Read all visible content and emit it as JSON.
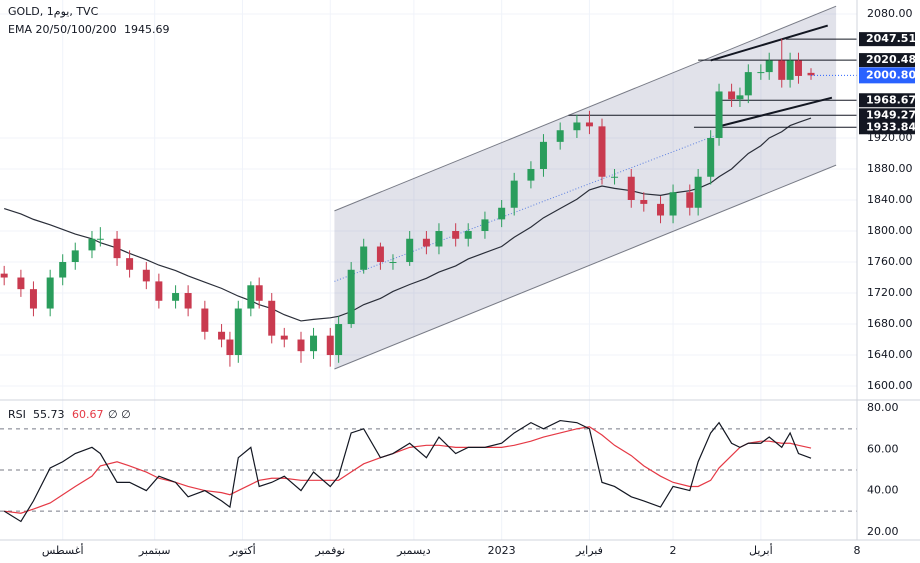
{
  "chart_data": {
    "type": "candlestick",
    "title": "GOLD, 1يوم, TVC",
    "ema_label": "EMA 20/50/100/200",
    "ema_value": 1945.69,
    "up_color": "#2a9d5c",
    "down_color": "#c93a4f",
    "xlim": [
      0,
      205
    ],
    "xticks": [
      {
        "value": 15,
        "label": "أغسطس"
      },
      {
        "value": 37,
        "label": "سبتمبر"
      },
      {
        "value": 58,
        "label": "أكتوبر"
      },
      {
        "value": 79,
        "label": "نوفمبر"
      },
      {
        "value": 99,
        "label": "ديسمبر"
      },
      {
        "value": 120,
        "label": "2023"
      },
      {
        "value": 141,
        "label": "فبراير"
      },
      {
        "value": 161,
        "label": "2"
      },
      {
        "value": 182,
        "label": "أبريل"
      },
      {
        "value": 205,
        "label": "8"
      }
    ],
    "ylim": [
      1582,
      2098
    ],
    "yticks": [
      {
        "value": 2080,
        "label": "2080.00"
      },
      {
        "value": 1920,
        "label": "1920.00"
      },
      {
        "value": 1880,
        "label": "1880.00"
      },
      {
        "value": 1840,
        "label": "1840.00"
      },
      {
        "value": 1800,
        "label": "1800.00"
      },
      {
        "value": 1760,
        "label": "1760.00"
      },
      {
        "value": 1720,
        "label": "1720.00"
      },
      {
        "value": 1680,
        "label": "1680.00"
      },
      {
        "value": 1640,
        "label": "1640.00"
      },
      {
        "value": 1600,
        "label": "1600.00"
      }
    ],
    "x": [
      1,
      5,
      8,
      12,
      15,
      18,
      22,
      24,
      28,
      31,
      35,
      38,
      42,
      45,
      49,
      53,
      55,
      57,
      60,
      62,
      65,
      68,
      72,
      75,
      79,
      81,
      84,
      87,
      91,
      94,
      98,
      102,
      105,
      109,
      112,
      116,
      120,
      123,
      127,
      130,
      134,
      138,
      141,
      144,
      147,
      151,
      154,
      158,
      161,
      165,
      167,
      170,
      172,
      175,
      177,
      179,
      182,
      184,
      187,
      189,
      191,
      194
    ],
    "open": [
      1745,
      1740,
      1725,
      1700,
      1740,
      1760,
      1775,
      1790,
      1790,
      1765,
      1750,
      1735,
      1710,
      1720,
      1700,
      1670,
      1660,
      1640,
      1700,
      1730,
      1710,
      1665,
      1660,
      1645,
      1665,
      1640,
      1680,
      1750,
      1780,
      1760,
      1760,
      1790,
      1780,
      1800,
      1790,
      1800,
      1815,
      1830,
      1865,
      1880,
      1915,
      1930,
      1940,
      1935,
      1870,
      1870,
      1840,
      1835,
      1820,
      1850,
      1830,
      1870,
      1920,
      1980,
      1970,
      1975,
      2005,
      2005,
      2020,
      1995,
      2020,
      2004
    ],
    "high": [
      1755,
      1750,
      1735,
      1750,
      1770,
      1785,
      1800,
      1805,
      1800,
      1775,
      1760,
      1745,
      1730,
      1730,
      1710,
      1680,
      1670,
      1710,
      1735,
      1740,
      1720,
      1675,
      1670,
      1675,
      1675,
      1690,
      1760,
      1790,
      1785,
      1770,
      1800,
      1800,
      1810,
      1810,
      1810,
      1825,
      1840,
      1875,
      1890,
      1925,
      1940,
      1950,
      1955,
      1945,
      1880,
      1880,
      1850,
      1845,
      1860,
      1860,
      1880,
      1930,
      1990,
      1990,
      1985,
      2015,
      2015,
      2030,
      2048,
      2030,
      2030,
      2010
    ],
    "low": [
      1730,
      1715,
      1690,
      1690,
      1730,
      1750,
      1765,
      1780,
      1755,
      1740,
      1725,
      1700,
      1700,
      1690,
      1660,
      1650,
      1625,
      1630,
      1690,
      1700,
      1655,
      1650,
      1630,
      1635,
      1625,
      1630,
      1675,
      1745,
      1750,
      1750,
      1755,
      1770,
      1770,
      1780,
      1780,
      1790,
      1805,
      1820,
      1855,
      1870,
      1905,
      1920,
      1925,
      1860,
      1860,
      1830,
      1825,
      1810,
      1810,
      1820,
      1820,
      1860,
      1910,
      1960,
      1960,
      1965,
      1995,
      1995,
      1985,
      1985,
      1990,
      1995
    ],
    "close": [
      1740,
      1725,
      1700,
      1740,
      1760,
      1775,
      1790,
      1790,
      1765,
      1750,
      1735,
      1710,
      1720,
      1700,
      1670,
      1660,
      1640,
      1700,
      1730,
      1710,
      1665,
      1660,
      1645,
      1665,
      1640,
      1680,
      1750,
      1780,
      1760,
      1760,
      1790,
      1780,
      1800,
      1790,
      1800,
      1815,
      1830,
      1865,
      1880,
      1915,
      1930,
      1940,
      1935,
      1870,
      1870,
      1840,
      1835,
      1820,
      1850,
      1830,
      1870,
      1920,
      1980,
      1970,
      1975,
      2005,
      2005,
      2020,
      1995,
      2020,
      2000,
      2000.8
    ],
    "ema": [
      1829,
      1822,
      1815,
      1808,
      1802,
      1796,
      1790,
      1785,
      1778,
      1771,
      1763,
      1756,
      1749,
      1742,
      1734,
      1726,
      1721,
      1716,
      1710,
      1705,
      1700,
      1692,
      1684,
      1686,
      1688,
      1690,
      1696,
      1705,
      1713,
      1722,
      1731,
      1739,
      1747,
      1755,
      1764,
      1772,
      1780,
      1792,
      1805,
      1817,
      1829,
      1841,
      1853,
      1858,
      1855,
      1852,
      1848,
      1846,
      1849,
      1852,
      1855,
      1862,
      1870,
      1880,
      1890,
      1900,
      1910,
      1920,
      1928,
      1936,
      1940,
      1945.69
    ],
    "channel_upper": [
      [
        80,
        1826
      ],
      [
        200,
        2090
      ]
    ],
    "channel_lower": [
      [
        80,
        1622
      ],
      [
        200,
        1885
      ]
    ],
    "trend_line": [
      [
        80,
        1735
      ],
      [
        172,
        1925
      ]
    ],
    "small_channel_upper": [
      [
        170,
        2020
      ],
      [
        198,
        2065
      ]
    ],
    "small_channel_lower": [
      [
        172,
        1935
      ],
      [
        199,
        1972
      ]
    ],
    "levels": [
      {
        "value": 2047.51,
        "from": 188
      },
      {
        "value": 2020.48,
        "from": 167
      },
      {
        "value": 1968.67,
        "from": 172
      },
      {
        "value": 1949.27,
        "from": 136
      },
      {
        "value": 1933.84,
        "from": 166
      }
    ],
    "last_price": {
      "value": 2000.8,
      "label": "2000.80"
    },
    "rsi": {
      "name": "RSI",
      "value": 55.73,
      "ma_value": 60.67,
      "extra": "∅ ∅",
      "color": "#131722",
      "ma_color": "#e53945",
      "ylim": [
        16,
        84
      ],
      "yticks": [
        {
          "value": 80,
          "label": "80.00"
        },
        {
          "value": 60,
          "label": "60.00"
        },
        {
          "value": 40,
          "label": "40.00"
        },
        {
          "value": 20,
          "label": "20.00"
        }
      ],
      "bands": [
        70,
        50,
        30
      ],
      "values": [
        30,
        25,
        35,
        51,
        54,
        58,
        61,
        58,
        44,
        44,
        40,
        47,
        44,
        37,
        40,
        35,
        32,
        56,
        61,
        42,
        44,
        47,
        40,
        49,
        42,
        47,
        68,
        70,
        56,
        58,
        63,
        56,
        66,
        58,
        61,
        61,
        63,
        68,
        73,
        70,
        74,
        73,
        70,
        44,
        42,
        37,
        35,
        32,
        42,
        40,
        54,
        68,
        73,
        63,
        61,
        63,
        63,
        66,
        61,
        68,
        58,
        55.73
      ],
      "ma": [
        30,
        29,
        31,
        34,
        38,
        42,
        47,
        52,
        54,
        52,
        49,
        46,
        44,
        42,
        40,
        39,
        38,
        40,
        43,
        45,
        46,
        46,
        45,
        45,
        45,
        45,
        49,
        53,
        56,
        58,
        61,
        62,
        62,
        61,
        61,
        61,
        61,
        62,
        64,
        66,
        68,
        70,
        71,
        67,
        62,
        57,
        52,
        47,
        44,
        42,
        42,
        45,
        51,
        57,
        61,
        63,
        64,
        64,
        63,
        63,
        62,
        60.67
      ]
    }
  }
}
